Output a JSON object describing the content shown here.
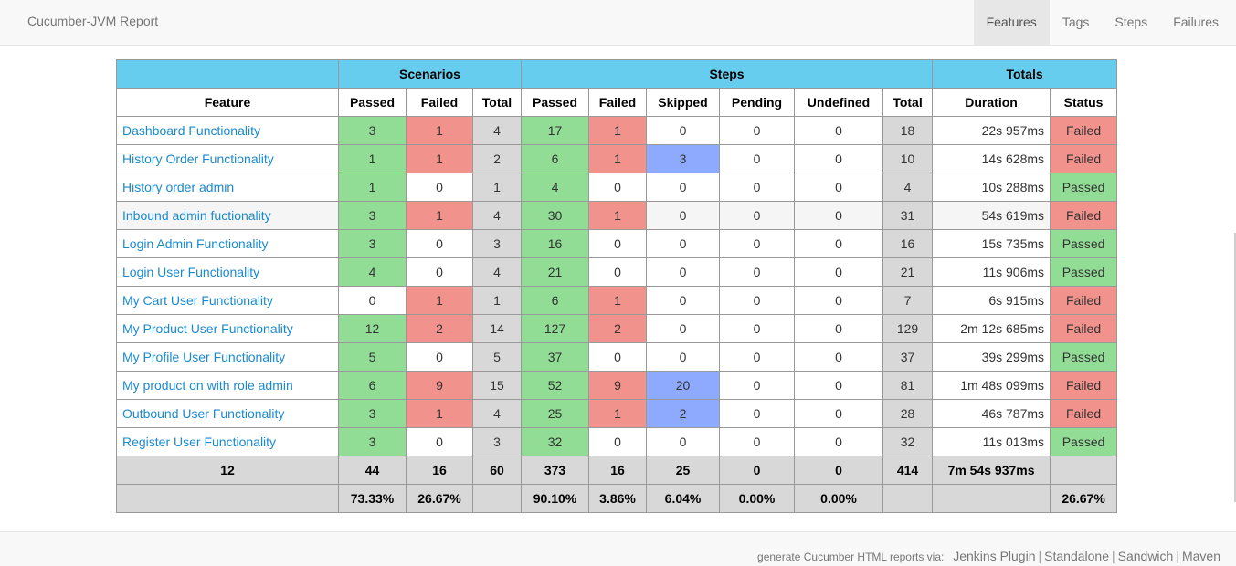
{
  "brand": "Cucumber-JVM Report",
  "nav": [
    "Features",
    "Tags",
    "Steps",
    "Failures"
  ],
  "table": {
    "group_headers": [
      "Scenarios",
      "Steps",
      "Totals"
    ],
    "columns": [
      "Feature",
      "Passed",
      "Failed",
      "Total",
      "Passed",
      "Failed",
      "Skipped",
      "Pending",
      "Undefined",
      "Total",
      "Duration",
      "Status"
    ],
    "rows": [
      [
        "Dashboard Functionality",
        "3",
        "1",
        "4",
        "17",
        "1",
        "0",
        "0",
        "0",
        "18",
        "22s 957ms",
        "Failed"
      ],
      [
        "History Order Functionality",
        "1",
        "1",
        "2",
        "6",
        "1",
        "3",
        "0",
        "0",
        "10",
        "14s 628ms",
        "Failed"
      ],
      [
        "History order admin",
        "1",
        "0",
        "1",
        "4",
        "0",
        "0",
        "0",
        "0",
        "4",
        "10s 288ms",
        "Passed"
      ],
      [
        "Inbound admin fuctionality",
        "3",
        "1",
        "4",
        "30",
        "1",
        "0",
        "0",
        "0",
        "31",
        "54s 619ms",
        "Failed"
      ],
      [
        "Login Admin Functionality",
        "3",
        "0",
        "3",
        "16",
        "0",
        "0",
        "0",
        "0",
        "16",
        "15s 735ms",
        "Passed"
      ],
      [
        "Login User Functionality",
        "4",
        "0",
        "4",
        "21",
        "0",
        "0",
        "0",
        "0",
        "21",
        "11s 906ms",
        "Passed"
      ],
      [
        "My Cart User Functionality",
        "0",
        "1",
        "1",
        "6",
        "1",
        "0",
        "0",
        "0",
        "7",
        "6s 915ms",
        "Failed"
      ],
      [
        "My Product User Functionality",
        "12",
        "2",
        "14",
        "127",
        "2",
        "0",
        "0",
        "0",
        "129",
        "2m 12s 685ms",
        "Failed"
      ],
      [
        "My Profile User Functionality",
        "5",
        "0",
        "5",
        "37",
        "0",
        "0",
        "0",
        "0",
        "37",
        "39s 299ms",
        "Passed"
      ],
      [
        "My product on with role admin",
        "6",
        "9",
        "15",
        "52",
        "9",
        "20",
        "0",
        "0",
        "81",
        "1m 48s 099ms",
        "Failed"
      ],
      [
        "Outbound User Functionality",
        "3",
        "1",
        "4",
        "25",
        "1",
        "2",
        "0",
        "0",
        "28",
        "46s 787ms",
        "Failed"
      ],
      [
        "Register User Functionality",
        "3",
        "0",
        "3",
        "32",
        "0",
        "0",
        "0",
        "0",
        "32",
        "11s 013ms",
        "Passed"
      ]
    ],
    "totals": [
      "12",
      "44",
      "16",
      "60",
      "373",
      "16",
      "25",
      "0",
      "0",
      "414",
      "7m 54s 937ms",
      ""
    ],
    "percentages": [
      "",
      "73.33%",
      "26.67%",
      "",
      "90.10%",
      "3.86%",
      "6.04%",
      "0.00%",
      "0.00%",
      "",
      "",
      "26.67%"
    ]
  },
  "footer": {
    "prefix": "generate Cucumber HTML reports via:",
    "links": [
      "Jenkins Plugin",
      "Standalone",
      "Sandwich",
      "Maven"
    ]
  },
  "colors": {
    "passed": "#92dd96",
    "failed": "#f2928c",
    "skipped": "#8daaff",
    "pending": "#f5f28f",
    "undefined": "#f5b975",
    "header": "#66cdee",
    "link": "#1a8ad0"
  }
}
